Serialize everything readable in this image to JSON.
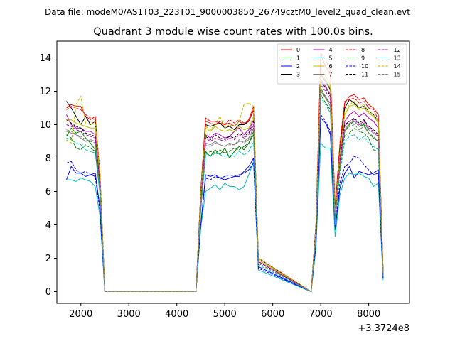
{
  "figure": {
    "suptitle": "Data file: modeM0/AS1T03_223T01_9000003850_26749cztM0_level2_quad_clean.evt"
  },
  "chart_data": {
    "type": "line",
    "title": "Quadrant 3 module wise count rates with 100.0s bins.",
    "xlabel": "",
    "ylabel": "",
    "offset_text": "+3.3724e8",
    "xlim": [
      1500,
      8850
    ],
    "ylim": [
      -0.7,
      15.0
    ],
    "xticks": [
      2000,
      3000,
      4000,
      5000,
      6000,
      7000,
      8000
    ],
    "xtick_labels": [
      "2000",
      "3000",
      "4000",
      "5000",
      "6000",
      "7000",
      "8000"
    ],
    "yticks": [
      0,
      2,
      4,
      6,
      8,
      10,
      12,
      14
    ],
    "ytick_labels": [
      "0",
      "2",
      "4",
      "6",
      "8",
      "10",
      "12",
      "14"
    ],
    "grid": false,
    "legend_position": "top-right",
    "legend_columns": 4,
    "x": [
      1700,
      1800,
      1900,
      2000,
      2100,
      2200,
      2300,
      2400,
      2500,
      4400,
      4500,
      4600,
      4700,
      4800,
      4900,
      5000,
      5100,
      5200,
      5300,
      5400,
      5500,
      5600,
      5700,
      6800,
      6900,
      7000,
      7100,
      7200,
      7300,
      7400,
      7500,
      7600,
      7700,
      7800,
      7900,
      8000,
      8100,
      8200,
      8300
    ],
    "series": [
      {
        "name": "0",
        "color": "#ff0000",
        "dash": "solid",
        "values": [
          11.0,
          11.2,
          11.1,
          11.1,
          10.5,
          10.3,
          10.5,
          7.0,
          0.0,
          0.0,
          6.0,
          10.4,
          10.2,
          10.2,
          10.1,
          10.0,
          10.1,
          9.9,
          10.2,
          10.0,
          10.3,
          11.1,
          2.0,
          0.0,
          4.0,
          14.2,
          13.5,
          13.0,
          5.0,
          8.8,
          11.3,
          11.7,
          11.8,
          11.5,
          11.6,
          11.2,
          11.0,
          10.6,
          1.2
        ]
      },
      {
        "name": "1",
        "color": "#008000",
        "dash": "solid",
        "values": [
          9.3,
          9.8,
          9.5,
          9.6,
          9.2,
          8.9,
          8.5,
          6.0,
          0.0,
          0.0,
          5.0,
          8.4,
          8.1,
          8.5,
          8.2,
          8.6,
          8.0,
          8.4,
          8.7,
          8.5,
          8.9,
          9.6,
          2.0,
          0.0,
          3.5,
          12.2,
          11.6,
          11.3,
          4.3,
          7.6,
          9.6,
          10.0,
          10.2,
          9.9,
          10.0,
          9.5,
          9.2,
          9.0,
          1.0
        ]
      },
      {
        "name": "2",
        "color": "#0000ff",
        "dash": "solid",
        "values": [
          6.7,
          7.5,
          7.1,
          7.1,
          6.9,
          7.0,
          7.1,
          5.0,
          0.0,
          0.0,
          4.0,
          7.0,
          6.9,
          7.0,
          6.8,
          6.7,
          6.8,
          6.9,
          6.9,
          7.2,
          7.5,
          8.0,
          1.5,
          0.0,
          2.8,
          10.4,
          10.1,
          9.4,
          3.7,
          6.2,
          7.1,
          7.5,
          6.8,
          7.2,
          7.1,
          7.0,
          7.1,
          7.3,
          0.8
        ]
      },
      {
        "name": "3",
        "color": "#000000",
        "dash": "solid",
        "values": [
          11.4,
          11.0,
          10.5,
          10.0,
          10.5,
          10.0,
          10.2,
          7.0,
          0.0,
          0.0,
          6.0,
          10.0,
          9.9,
          10.0,
          10.1,
          9.8,
          9.9,
          9.7,
          10.0,
          10.0,
          10.2,
          10.9,
          2.0,
          0.0,
          4.0,
          13.0,
          12.6,
          12.1,
          4.8,
          8.4,
          11.0,
          11.5,
          11.3,
          11.0,
          11.1,
          10.8,
          10.6,
          10.2,
          1.2
        ]
      },
      {
        "name": "4",
        "color": "#bf00bf",
        "dash": "solid",
        "values": [
          10.6,
          10.0,
          9.8,
          9.8,
          9.6,
          9.6,
          9.4,
          6.5,
          0.0,
          0.0,
          5.5,
          9.4,
          9.2,
          9.5,
          9.4,
          9.2,
          9.3,
          9.6,
          9.8,
          9.4,
          9.7,
          10.3,
          1.9,
          0.0,
          3.7,
          12.7,
          12.3,
          11.8,
          4.5,
          8.0,
          10.2,
          10.6,
          10.8,
          10.5,
          10.7,
          10.4,
          10.2,
          9.8,
          1.1
        ]
      },
      {
        "name": "5",
        "color": "#00bfbf",
        "dash": "solid",
        "values": [
          6.7,
          6.7,
          6.6,
          6.8,
          6.7,
          6.6,
          6.3,
          4.5,
          0.0,
          0.0,
          3.8,
          6.0,
          6.2,
          6.4,
          6.1,
          6.5,
          6.3,
          6.3,
          6.1,
          6.3,
          7.0,
          7.8,
          1.3,
          0.0,
          2.6,
          8.9,
          8.6,
          8.6,
          3.3,
          5.8,
          6.8,
          7.1,
          7.0,
          7.1,
          6.9,
          6.8,
          6.3,
          6.5,
          0.7
        ]
      },
      {
        "name": "6",
        "color": "#bfbf00",
        "dash": "solid",
        "values": [
          10.2,
          10.3,
          10.1,
          10.0,
          9.9,
          9.8,
          9.8,
          6.8,
          0.0,
          0.0,
          5.7,
          9.8,
          9.6,
          9.9,
          9.7,
          9.6,
          9.7,
          9.6,
          9.9,
          9.7,
          9.8,
          10.5,
          1.9,
          0.0,
          3.8,
          13.4,
          12.9,
          12.4,
          4.6,
          8.2,
          10.6,
          11.1,
          11.2,
          10.9,
          11.0,
          10.7,
          10.5,
          10.1,
          1.1
        ]
      },
      {
        "name": "7",
        "color": "#808080",
        "dash": "solid",
        "values": [
          9.6,
          9.5,
          9.4,
          9.2,
          9.0,
          9.1,
          9.0,
          6.2,
          0.0,
          0.0,
          5.2,
          8.9,
          8.8,
          9.0,
          8.8,
          8.7,
          8.9,
          8.8,
          9.0,
          9.0,
          9.2,
          9.8,
          1.8,
          0.0,
          3.6,
          12.0,
          11.6,
          11.1,
          4.3,
          7.6,
          9.7,
          10.1,
          10.2,
          9.9,
          10.1,
          9.7,
          9.5,
          9.3,
          1.0
        ]
      },
      {
        "name": "8",
        "color": "#ff0000",
        "dash": "dashed",
        "values": [
          10.9,
          11.1,
          11.0,
          10.9,
          10.6,
          10.4,
          10.3,
          7.0,
          0.0,
          0.0,
          5.9,
          10.2,
          10.1,
          10.0,
          10.2,
          10.0,
          10.3,
          10.1,
          10.3,
          10.1,
          10.2,
          10.9,
          2.0,
          0.0,
          4.0,
          14.3,
          13.9,
          13.2,
          5.0,
          8.9,
          11.4,
          11.5,
          11.6,
          11.3,
          11.4,
          11.0,
          10.9,
          10.3,
          1.2
        ]
      },
      {
        "name": "9",
        "color": "#008000",
        "dash": "dashed",
        "values": [
          9.4,
          9.2,
          8.6,
          8.5,
          8.8,
          8.6,
          8.4,
          5.9,
          0.0,
          0.0,
          4.9,
          8.2,
          8.4,
          8.3,
          8.5,
          8.3,
          8.4,
          8.6,
          8.5,
          8.7,
          8.9,
          9.4,
          1.7,
          0.0,
          3.4,
          11.8,
          11.3,
          10.9,
          4.1,
          7.3,
          9.4,
          9.5,
          9.8,
          9.6,
          9.5,
          9.2,
          8.5,
          8.4,
          0.9
        ]
      },
      {
        "name": "10",
        "color": "#0000ff",
        "dash": "dashed",
        "values": [
          7.7,
          7.8,
          7.3,
          7.1,
          7.2,
          7.0,
          6.9,
          4.8,
          0.0,
          0.0,
          4.0,
          6.8,
          6.7,
          6.9,
          6.8,
          6.9,
          7.0,
          6.9,
          7.0,
          7.1,
          7.3,
          7.7,
          1.4,
          0.0,
          2.8,
          10.6,
          10.2,
          9.6,
          3.8,
          6.5,
          7.5,
          7.7,
          8.1,
          8.0,
          7.6,
          7.3,
          7.0,
          7.1,
          0.8
        ]
      },
      {
        "name": "11",
        "color": "#000000",
        "dash": "dashed",
        "values": [
          10.3,
          10.1,
          9.9,
          9.8,
          9.5,
          9.4,
          9.3,
          6.4,
          0.0,
          0.0,
          5.4,
          9.3,
          9.1,
          9.4,
          9.2,
          9.1,
          9.3,
          9.2,
          9.5,
          9.3,
          9.5,
          10.2,
          1.8,
          0.0,
          3.7,
          12.6,
          12.2,
          11.7,
          4.4,
          7.9,
          10.0,
          10.2,
          10.4,
          10.1,
          10.3,
          9.9,
          9.7,
          9.4,
          1.0
        ]
      },
      {
        "name": "12",
        "color": "#bf00bf",
        "dash": "dashed",
        "values": [
          10.0,
          9.9,
          9.7,
          9.6,
          9.4,
          9.3,
          9.2,
          6.3,
          0.0,
          0.0,
          5.3,
          9.2,
          9.0,
          9.2,
          9.1,
          9.0,
          9.2,
          9.1,
          9.4,
          9.2,
          9.4,
          10.0,
          1.8,
          0.0,
          3.6,
          12.4,
          12.0,
          11.5,
          4.4,
          7.8,
          9.9,
          10.2,
          10.3,
          10.0,
          10.2,
          9.8,
          9.6,
          9.3,
          1.0
        ]
      },
      {
        "name": "13",
        "color": "#00bfbf",
        "dash": "dashed",
        "values": [
          9.2,
          9.1,
          8.9,
          8.8,
          8.5,
          8.4,
          8.3,
          5.8,
          0.0,
          0.0,
          4.9,
          8.3,
          8.1,
          8.3,
          8.2,
          8.1,
          8.2,
          8.1,
          8.4,
          8.2,
          8.4,
          9.0,
          1.6,
          0.0,
          3.3,
          11.6,
          11.2,
          10.7,
          4.0,
          7.1,
          9.0,
          9.3,
          9.4,
          9.1,
          9.3,
          8.9,
          8.7,
          8.5,
          0.9
        ]
      },
      {
        "name": "14",
        "color": "#bfbf00",
        "dash": "dashed",
        "values": [
          9.1,
          8.9,
          11.2,
          11.7,
          10.1,
          10.0,
          10.2,
          7.1,
          0.0,
          0.0,
          5.8,
          9.9,
          9.7,
          10.0,
          10.5,
          9.8,
          10.0,
          9.9,
          10.2,
          11.2,
          11.3,
          11.1,
          2.0,
          0.0,
          3.9,
          13.2,
          12.7,
          12.2,
          4.7,
          8.3,
          10.8,
          11.2,
          11.4,
          11.0,
          11.2,
          10.8,
          10.6,
          10.2,
          1.1
        ]
      },
      {
        "name": "15",
        "color": "#808080",
        "dash": "dashed",
        "values": [
          9.7,
          9.6,
          9.4,
          9.3,
          9.1,
          9.0,
          8.9,
          6.1,
          0.0,
          0.0,
          5.1,
          8.8,
          8.7,
          8.9,
          8.8,
          8.7,
          8.8,
          8.8,
          9.1,
          8.9,
          9.1,
          9.7,
          1.7,
          0.0,
          3.5,
          12.1,
          11.7,
          11.2,
          4.2,
          7.5,
          9.6,
          9.9,
          10.0,
          9.7,
          9.9,
          9.5,
          9.3,
          9.0,
          1.0
        ]
      }
    ]
  }
}
